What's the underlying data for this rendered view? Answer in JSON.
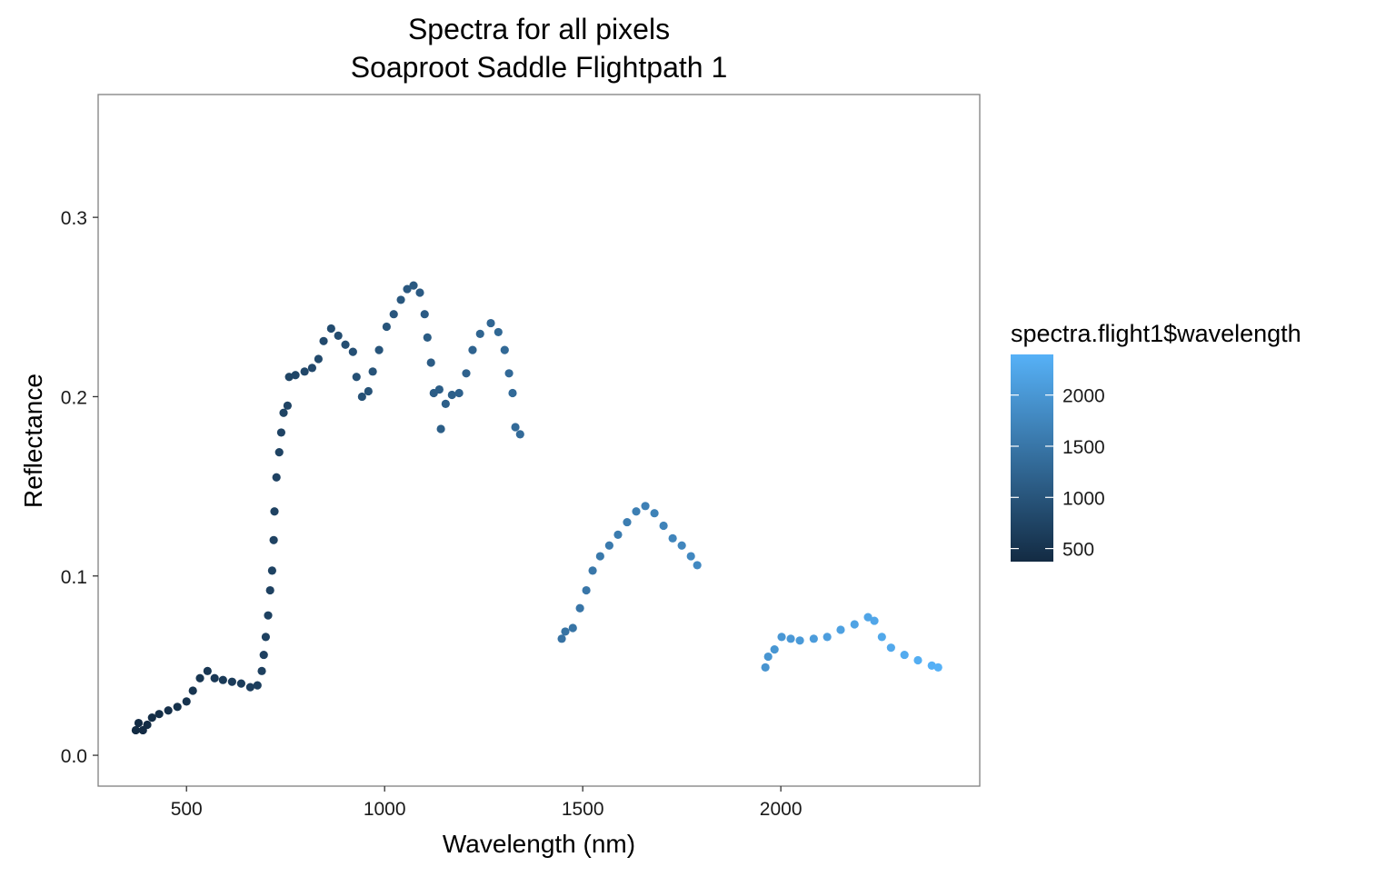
{
  "chart_data": {
    "type": "scatter",
    "title": "Spectra for all pixels",
    "subtitle": "Soaproot Saddle Flightpath 1",
    "x_label": "Wavelength (nm)",
    "y_label": "Reflectance",
    "x": [
      372,
      379,
      390,
      401,
      413,
      431,
      454,
      477,
      500,
      516,
      534,
      553,
      571,
      592,
      615,
      638,
      661,
      679,
      690,
      695,
      700,
      706,
      711,
      716,
      720,
      722,
      727,
      734,
      739,
      745,
      755,
      759,
      775,
      798,
      817,
      833,
      846,
      865,
      883,
      901,
      920,
      929,
      943,
      959,
      970,
      986,
      1005,
      1023,
      1041,
      1057,
      1073,
      1089,
      1101,
      1108,
      1117,
      1124,
      1138,
      1142,
      1154,
      1170,
      1188,
      1206,
      1222,
      1241,
      1268,
      1287,
      1303,
      1314,
      1323,
      1330,
      1342,
      1447,
      1456,
      1475,
      1493,
      1509,
      1525,
      1544,
      1567,
      1589,
      1612,
      1635,
      1658,
      1681,
      1704,
      1727,
      1750,
      1773,
      1789,
      1961,
      1968,
      1984,
      2002,
      2025,
      2048,
      2083,
      2117,
      2151,
      2186,
      2220,
      2236,
      2255,
      2278,
      2312,
      2346,
      2381,
      2397
    ],
    "values": [
      0.014,
      0.018,
      0.014,
      0.017,
      0.021,
      0.023,
      0.025,
      0.027,
      0.03,
      0.036,
      0.043,
      0.047,
      0.043,
      0.042,
      0.041,
      0.04,
      0.038,
      0.039,
      0.047,
      0.056,
      0.066,
      0.078,
      0.092,
      0.103,
      0.12,
      0.136,
      0.155,
      0.169,
      0.18,
      0.191,
      0.195,
      0.211,
      0.212,
      0.214,
      0.216,
      0.221,
      0.231,
      0.238,
      0.234,
      0.229,
      0.225,
      0.211,
      0.2,
      0.203,
      0.214,
      0.226,
      0.239,
      0.246,
      0.254,
      0.26,
      0.262,
      0.258,
      0.246,
      0.233,
      0.219,
      0.202,
      0.204,
      0.182,
      0.196,
      0.201,
      0.202,
      0.213,
      0.226,
      0.235,
      0.241,
      0.236,
      0.226,
      0.213,
      0.202,
      0.183,
      0.179,
      0.065,
      0.069,
      0.071,
      0.082,
      0.092,
      0.103,
      0.111,
      0.117,
      0.123,
      0.13,
      0.136,
      0.139,
      0.135,
      0.128,
      0.121,
      0.117,
      0.111,
      0.106,
      0.049,
      0.055,
      0.059,
      0.066,
      0.065,
      0.064,
      0.065,
      0.066,
      0.07,
      0.073,
      0.077,
      0.075,
      0.066,
      0.06,
      0.056,
      0.053,
      0.05,
      0.049
    ],
    "xlim": [
      277,
      2502
    ],
    "ylim": [
      -0.0172,
      0.3685
    ],
    "xticks": [
      500,
      1000,
      1500,
      2000
    ],
    "yticks": [
      {
        "value": 0,
        "label": "0.0"
      },
      0.1,
      0.2,
      0.3
    ],
    "grid": false,
    "legend_title": "spectra.flight1$wavelength",
    "color_low": "#132B43",
    "color_high": "#56B1F7",
    "clim": [
      372,
      2397
    ],
    "legend_ticks": [
      500,
      1000,
      1500,
      2000
    ]
  }
}
